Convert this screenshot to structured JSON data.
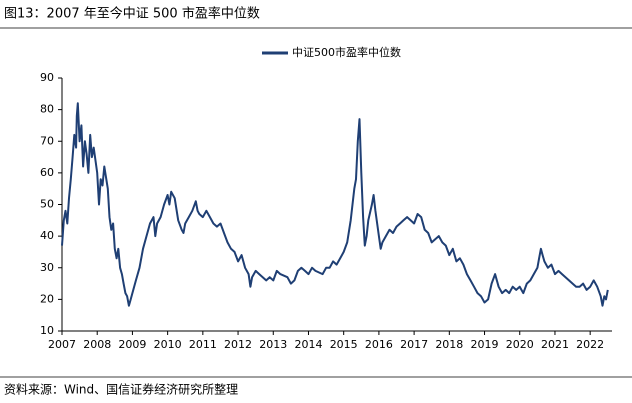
{
  "chart_data": {
    "type": "line",
    "title": "图13：2007 年至今中证 500 市盈率中位数",
    "source": "资料来源：Wind、国信证券经济研究所整理",
    "x": [
      2007.0,
      2007.05,
      2007.1,
      2007.15,
      2007.2,
      2007.25,
      2007.3,
      2007.35,
      2007.4,
      2007.42,
      2007.45,
      2007.5,
      2007.55,
      2007.6,
      2007.65,
      2007.7,
      2007.75,
      2007.8,
      2007.85,
      2007.9,
      2008.0,
      2008.05,
      2008.1,
      2008.15,
      2008.2,
      2008.3,
      2008.35,
      2008.4,
      2008.45,
      2008.5,
      2008.55,
      2008.6,
      2008.65,
      2008.7,
      2008.75,
      2008.8,
      2008.85,
      2008.9,
      2008.95,
      2009.0,
      2009.1,
      2009.2,
      2009.3,
      2009.4,
      2009.5,
      2009.6,
      2009.65,
      2009.7,
      2009.8,
      2009.9,
      2010.0,
      2010.05,
      2010.1,
      2010.2,
      2010.3,
      2010.4,
      2010.45,
      2010.5,
      2010.6,
      2010.7,
      2010.8,
      2010.85,
      2010.9,
      2011.0,
      2011.1,
      2011.2,
      2011.3,
      2011.4,
      2011.5,
      2011.6,
      2011.7,
      2011.8,
      2011.9,
      2012.0,
      2012.1,
      2012.2,
      2012.3,
      2012.35,
      2012.4,
      2012.5,
      2012.6,
      2012.7,
      2012.8,
      2012.9,
      2013.0,
      2013.1,
      2013.2,
      2013.4,
      2013.5,
      2013.6,
      2013.7,
      2013.8,
      2013.9,
      2014.0,
      2014.1,
      2014.2,
      2014.4,
      2014.5,
      2014.6,
      2014.7,
      2014.8,
      2014.9,
      2015.0,
      2015.1,
      2015.2,
      2015.3,
      2015.35,
      2015.4,
      2015.45,
      2015.5,
      2015.55,
      2015.6,
      2015.65,
      2015.7,
      2015.8,
      2015.85,
      2015.9,
      2016.0,
      2016.05,
      2016.1,
      2016.2,
      2016.3,
      2016.4,
      2016.5,
      2016.6,
      2016.7,
      2016.8,
      2016.9,
      2017.0,
      2017.1,
      2017.2,
      2017.3,
      2017.4,
      2017.5,
      2017.6,
      2017.7,
      2017.8,
      2017.9,
      2018.0,
      2018.1,
      2018.2,
      2018.3,
      2018.4,
      2018.5,
      2018.6,
      2018.7,
      2018.8,
      2018.9,
      2019.0,
      2019.1,
      2019.2,
      2019.3,
      2019.4,
      2019.5,
      2019.6,
      2019.7,
      2019.8,
      2019.9,
      2020.0,
      2020.1,
      2020.2,
      2020.3,
      2020.4,
      2020.5,
      2020.55,
      2020.6,
      2020.65,
      2020.7,
      2020.8,
      2020.9,
      2021.0,
      2021.1,
      2021.2,
      2021.3,
      2021.4,
      2021.5,
      2021.6,
      2021.7,
      2021.8,
      2021.9,
      2022.0,
      2022.1,
      2022.2,
      2022.3,
      2022.35,
      2022.4,
      2022.45,
      2022.5
    ],
    "series": [
      {
        "name": "中证500市盈率中位数",
        "color": "#1f3f74",
        "values": [
          37,
          45,
          48,
          44,
          52,
          58,
          65,
          72,
          68,
          78,
          82,
          70,
          75,
          62,
          70,
          66,
          60,
          72,
          65,
          68,
          60,
          50,
          58,
          56,
          62,
          55,
          46,
          42,
          44,
          36,
          33,
          36,
          30,
          28,
          25,
          22,
          21,
          18,
          20,
          22,
          26,
          30,
          36,
          40,
          44,
          46,
          40,
          44,
          46,
          50,
          53,
          50,
          54,
          52,
          45,
          42,
          41,
          44,
          46,
          48,
          51,
          48,
          47,
          46,
          48,
          46,
          44,
          43,
          44,
          41,
          38,
          36,
          35,
          32,
          34,
          30,
          28,
          24,
          27,
          29,
          28,
          27,
          26,
          27,
          26,
          29,
          28,
          27,
          25,
          26,
          29,
          30,
          29,
          28,
          30,
          29,
          28,
          30,
          30,
          32,
          31,
          33,
          35,
          38,
          45,
          55,
          58,
          70,
          77,
          60,
          46,
          37,
          40,
          45,
          50,
          53,
          48,
          40,
          36,
          38,
          40,
          42,
          41,
          43,
          44,
          45,
          46,
          45,
          44,
          47,
          46,
          42,
          41,
          38,
          39,
          40,
          38,
          37,
          34,
          36,
          32,
          33,
          31,
          28,
          26,
          24,
          22,
          21,
          19,
          20,
          25,
          28,
          24,
          22,
          23,
          22,
          24,
          23,
          24,
          22,
          25,
          26,
          28,
          30,
          33,
          36,
          34,
          32,
          30,
          31,
          28,
          29,
          28,
          27,
          26,
          25,
          24,
          24,
          25,
          23,
          24,
          26,
          24,
          21,
          18,
          21,
          20,
          23
        ]
      }
    ],
    "xlim": [
      2007,
      2022.62
    ],
    "xticks": [
      2007,
      2008,
      2009,
      2010,
      2011,
      2012,
      2013,
      2014,
      2015,
      2016,
      2017,
      2018,
      2019,
      2020,
      2021,
      2022
    ],
    "ylim": [
      10,
      90
    ],
    "yticks": [
      10,
      20,
      30,
      40,
      50,
      60,
      70,
      80,
      90
    ],
    "grid": false
  }
}
